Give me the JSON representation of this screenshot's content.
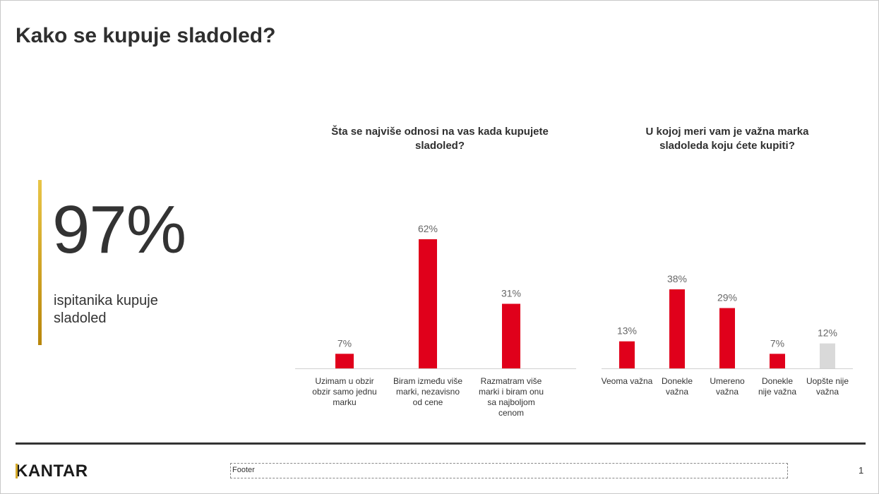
{
  "slide": {
    "title": "Kako se kupuje sladoled?",
    "stat_value": "97%",
    "stat_caption": "ispitanika kupuje sladoled",
    "footer": "Footer",
    "page_number": "1",
    "logo": "KANTAR"
  },
  "chart_data": [
    {
      "type": "bar",
      "title": "Šta se najviše odnosi na vas kada kupujete sladoled?",
      "categories": [
        "Uzimam u obzir obzir samo jednu marku",
        "Biram između više marki, nezavisno od cene",
        "Razmatram više marki i biram onu sa najboljom cenom"
      ],
      "values": [
        7,
        62,
        31
      ],
      "labels": [
        "7%",
        "62%",
        "31%"
      ],
      "colors": [
        "#e0001b",
        "#e0001b",
        "#e0001b"
      ],
      "ylim": [
        0,
        100
      ],
      "grid": false
    },
    {
      "type": "bar",
      "title": "U kojoj meri vam je važna marka sladoleda koju ćete kupiti?",
      "categories": [
        "Veoma važna",
        "Donekle važna",
        "Umereno važna",
        "Donekle nije važna",
        "Uopšte nije važna"
      ],
      "values": [
        13,
        38,
        29,
        7,
        12
      ],
      "labels": [
        "13%",
        "38%",
        "29%",
        "7%",
        "12%"
      ],
      "colors": [
        "#e0001b",
        "#e0001b",
        "#e0001b",
        "#e0001b",
        "#d9d9d9"
      ],
      "ylim": [
        0,
        100
      ],
      "grid": false
    }
  ]
}
